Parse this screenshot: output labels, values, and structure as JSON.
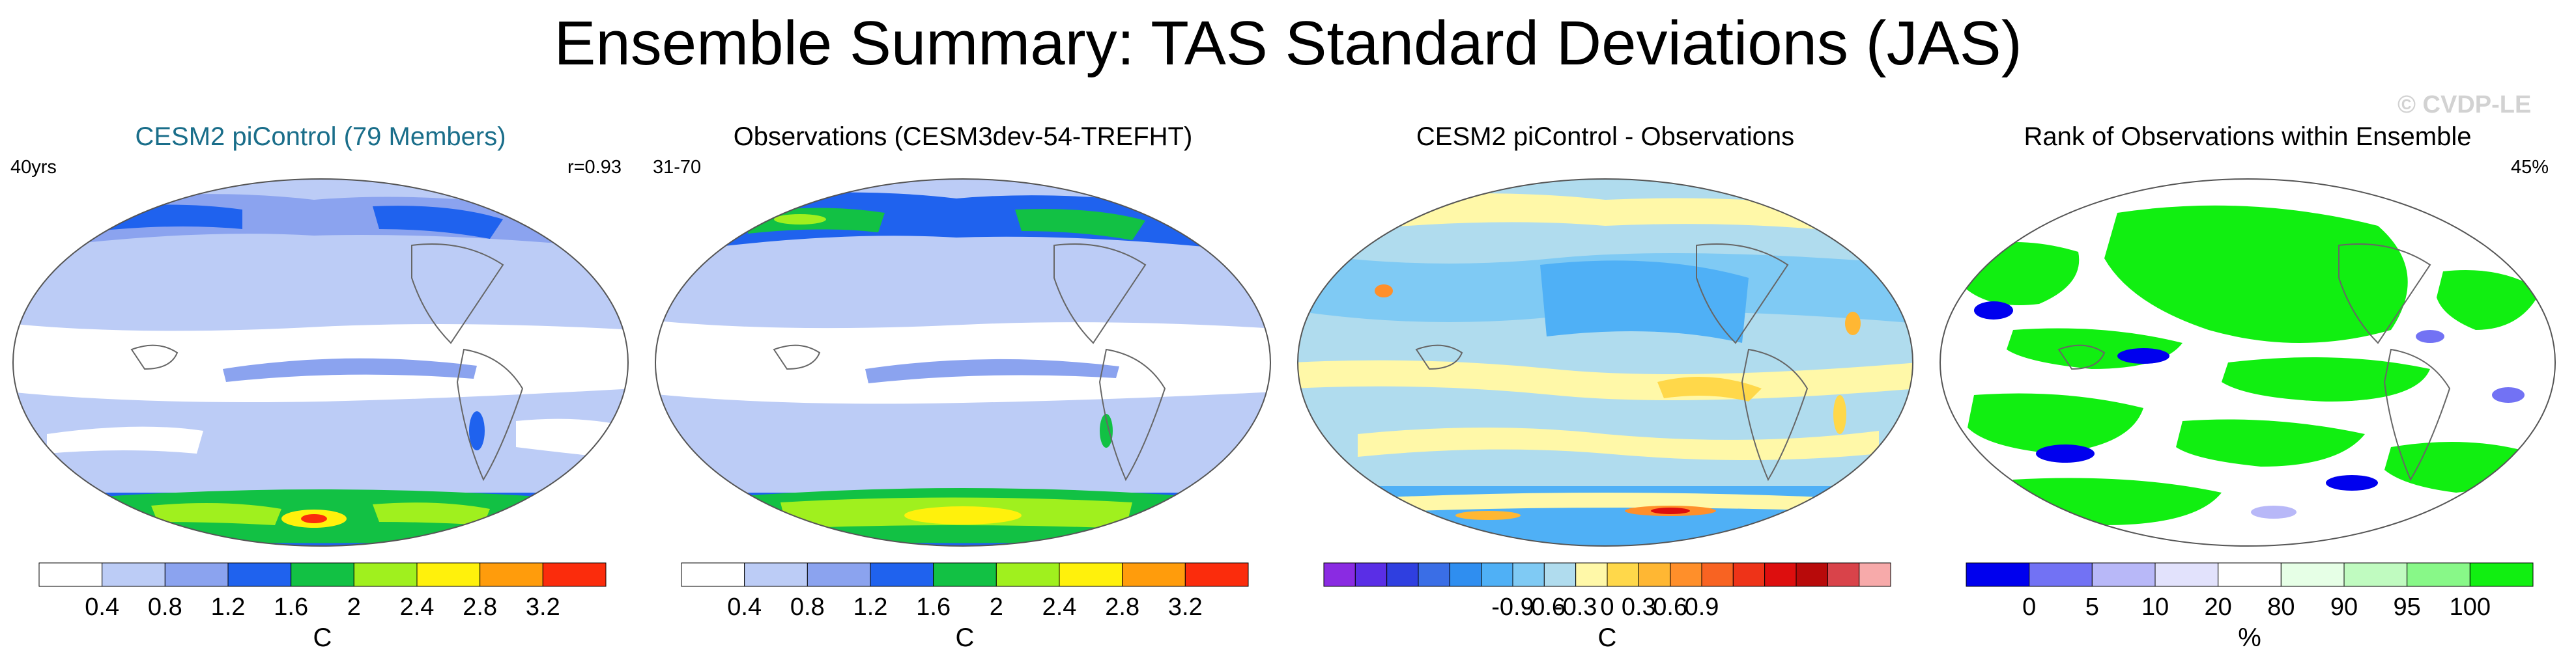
{
  "title": "Ensemble Summary: TAS Standard Deviations (JAS)",
  "watermark": "© CVDP-LE",
  "panels": [
    {
      "title": "CESM2 piControl (79 Members)",
      "left_label": "40yrs",
      "right_label": "r=0.93",
      "colorbar": {
        "unit": "C",
        "colors": [
          "#ffffff",
          "#bcccf6",
          "#8ba3ef",
          "#1f62ee",
          "#12c144",
          "#a0f01e",
          "#fff10c",
          "#ff9c0c",
          "#fb2c0c"
        ],
        "ticks": [
          "0.4",
          "0.8",
          "1.2",
          "1.6",
          "2",
          "2.4",
          "2.8",
          "3.2"
        ]
      }
    },
    {
      "title": "Observations (CESM3dev-54-TREFHT)",
      "left_label": "31-70",
      "right_label": "",
      "colorbar": {
        "unit": "C",
        "colors": [
          "#ffffff",
          "#bcccf6",
          "#8ba3ef",
          "#1f62ee",
          "#12c144",
          "#a0f01e",
          "#fff10c",
          "#ff9c0c",
          "#fb2c0c"
        ],
        "ticks": [
          "0.4",
          "0.8",
          "1.2",
          "1.6",
          "2",
          "2.4",
          "2.8",
          "3.2"
        ]
      }
    },
    {
      "title": "CESM2 piControl - Observations",
      "left_label": "",
      "right_label": "",
      "colorbar": {
        "unit": "C",
        "colors": [
          "#8a2be2",
          "#5a2ee6",
          "#2f3fe0",
          "#3a6ee6",
          "#2f8ef0",
          "#4fb0f6",
          "#7fcaf4",
          "#b0dcee",
          "#fff8a8",
          "#ffd84a",
          "#ffb733",
          "#ff8f2a",
          "#f86322",
          "#ee3318",
          "#dd0e0e",
          "#b80a0a",
          "#d9434a",
          "#f7aaaa"
        ],
        "ticks": [
          "-0.9",
          "-0.6",
          "-0.3",
          "0",
          "0.3",
          "0.6",
          "0.9"
        ]
      }
    },
    {
      "title": "Rank of Observations within Ensemble",
      "left_label": "",
      "right_label": "45%",
      "colorbar": {
        "unit": "%",
        "colors": [
          "#0000ee",
          "#7272f4",
          "#b8b8f8",
          "#e2e2fc",
          "#ffffff",
          "#e6ffe6",
          "#c0fbc0",
          "#88f888",
          "#11ef11"
        ],
        "ticks": [
          "0",
          "5",
          "10",
          "20",
          "80",
          "90",
          "95",
          "100"
        ]
      }
    }
  ]
}
